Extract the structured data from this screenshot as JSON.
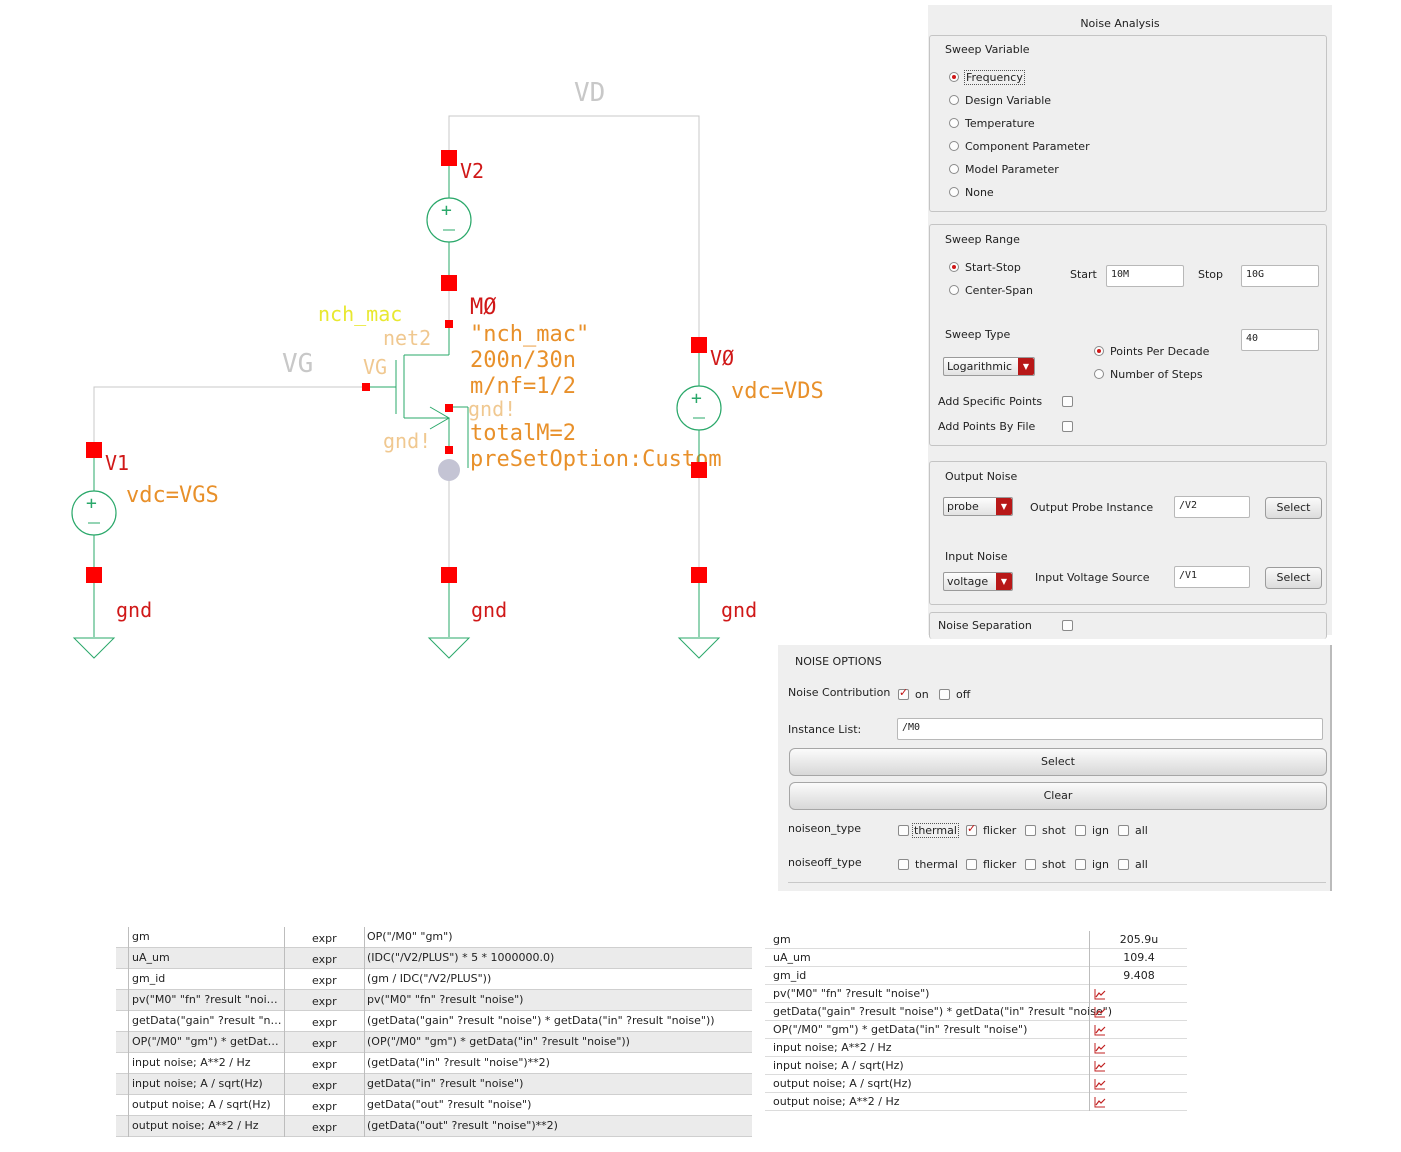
{
  "schematic": {
    "net_vd": "VD",
    "net_vg": "VG",
    "v2": {
      "name": "V2"
    },
    "v1": {
      "name": "V1",
      "param": "vdc=VGS"
    },
    "v0": {
      "name": "VØ",
      "param": "vdc=VDS"
    },
    "m0": {
      "name": "MØ",
      "cell": "\"nch_mac\"",
      "size": "200n/30n",
      "mnf": "m/nf=1/2",
      "total": "totalM=2",
      "preset": "preSetOption:Custom",
      "lib_label": "nch_mac",
      "net2": "net2",
      "pin_vg": "VG",
      "pin_gnd1": "gnd!",
      "pin_gnd2": "gnd!"
    },
    "gnd_labels": [
      "gnd",
      "gnd",
      "gnd"
    ],
    "colors": {
      "wire": "#c8c8c8",
      "source": "#2aa86a",
      "pin": "#ff0000",
      "inst_name": "#d01818",
      "param": "#e8902a",
      "yellow": "#e8e830"
    }
  },
  "noise_analysis": {
    "title": "Noise Analysis",
    "sweep_variable": {
      "title": "Sweep Variable",
      "options": [
        "Frequency",
        "Design Variable",
        "Temperature",
        "Component Parameter",
        "Model Parameter",
        "None"
      ],
      "selected": "Frequency"
    },
    "sweep_range": {
      "title": "Sweep Range",
      "modes": [
        "Start-Stop",
        "Center-Span"
      ],
      "selected": "Start-Stop",
      "start_label": "Start",
      "start_value": "10M",
      "stop_label": "Stop",
      "stop_value": "10G",
      "sweep_type_label": "Sweep Type",
      "sweep_type_value": "Logarithmic",
      "step_modes": [
        "Points Per Decade",
        "Number of Steps"
      ],
      "step_selected": "Points Per Decade",
      "points_value": "40",
      "add_specific_points": "Add Specific Points",
      "add_points_by_file": "Add Points By File"
    },
    "output_noise": {
      "title": "Output Noise",
      "type_value": "probe",
      "probe_label": "Output Probe Instance",
      "probe_value": "/V2",
      "select_label": "Select"
    },
    "input_noise": {
      "title": "Input Noise",
      "type_value": "voltage",
      "source_label": "Input Voltage Source",
      "source_value": "/V1",
      "select_label": "Select"
    },
    "noise_separation": "Noise Separation"
  },
  "noise_options": {
    "title": "NOISE OPTIONS",
    "contribution_label": "Noise Contribution",
    "on_label": "on",
    "off_label": "off",
    "instance_list_label": "Instance List:",
    "instance_list_value": "/M0",
    "select_label": "Select",
    "clear_label": "Clear",
    "noiseon_label": "noiseon_type",
    "noiseoff_label": "noiseoff_type",
    "types": [
      "thermal",
      "flicker",
      "shot",
      "ign",
      "all"
    ],
    "noiseon_checked": [
      "flicker"
    ],
    "noiseoff_checked": []
  },
  "outputs_table": {
    "rows": [
      {
        "name": "gm",
        "type": "expr",
        "expr": "OP(\"/M0\" \"gm\")"
      },
      {
        "name": "uA_um",
        "type": "expr",
        "expr": "(IDC(\"/V2/PLUS\") * 5 * 1000000.0)"
      },
      {
        "name": "gm_id",
        "type": "expr",
        "expr": "(gm / IDC(\"/V2/PLUS\"))"
      },
      {
        "name": "pv(\"M0\" \"fn\" ?result \"noise\")",
        "type": "expr",
        "expr": "pv(\"M0\" \"fn\" ?result \"noise\")"
      },
      {
        "name": "getData(\"gain\" ?result \"noi…",
        "type": "expr",
        "expr": "(getData(\"gain\" ?result \"noise\") * getData(\"in\" ?result \"noise\"))"
      },
      {
        "name": "OP(\"/M0\" \"gm\") * getData(\"…",
        "type": "expr",
        "expr": "(OP(\"/M0\" \"gm\") * getData(\"in\" ?result \"noise\"))"
      },
      {
        "name": "input noise; A**2 / Hz",
        "type": "expr",
        "expr": "(getData(\"in\" ?result \"noise\")**2)"
      },
      {
        "name": "input noise; A / sqrt(Hz)",
        "type": "expr",
        "expr": "getData(\"in\" ?result \"noise\")"
      },
      {
        "name": "output noise; A / sqrt(Hz)",
        "type": "expr",
        "expr": "getData(\"out\" ?result \"noise\")"
      },
      {
        "name": "output noise; A**2 / Hz",
        "type": "expr",
        "expr": "(getData(\"out\" ?result \"noise\")**2)"
      }
    ]
  },
  "results_table": {
    "rows": [
      {
        "name": "gm",
        "value": "205.9u"
      },
      {
        "name": "uA_um",
        "value": "109.4"
      },
      {
        "name": "gm_id",
        "value": "9.408"
      },
      {
        "name": "pv(\"M0\" \"fn\" ?result \"noise\")",
        "value": "",
        "icon": "plot-icon"
      },
      {
        "name": "getData(\"gain\" ?result \"noise\") * getData(\"in\" ?result \"noise\")",
        "value": "",
        "icon": "plot-icon"
      },
      {
        "name": "OP(\"/M0\" \"gm\") * getData(\"in\" ?result \"noise\")",
        "value": "",
        "icon": "plot-icon"
      },
      {
        "name": "input noise; A**2 / Hz",
        "value": "",
        "icon": "plot-icon"
      },
      {
        "name": "input noise; A / sqrt(Hz)",
        "value": "",
        "icon": "plot-icon"
      },
      {
        "name": "output noise; A / sqrt(Hz)",
        "value": "",
        "icon": "plot-icon"
      },
      {
        "name": "output noise; A**2 / Hz",
        "value": "",
        "icon": "plot-icon"
      }
    ]
  }
}
